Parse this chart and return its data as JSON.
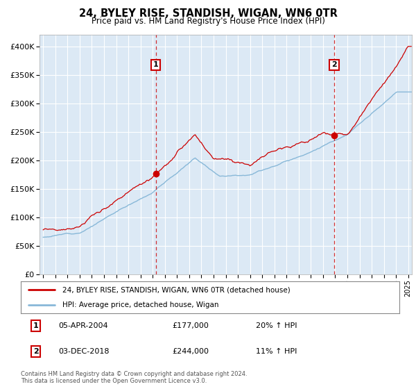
{
  "title": "24, BYLEY RISE, STANDISH, WIGAN, WN6 0TR",
  "subtitle": "Price paid vs. HM Land Registry's House Price Index (HPI)",
  "legend_line1": "24, BYLEY RISE, STANDISH, WIGAN, WN6 0TR (detached house)",
  "legend_line2": "HPI: Average price, detached house, Wigan",
  "annotation1_label": "1",
  "annotation1_date": "05-APR-2004",
  "annotation1_price": "£177,000",
  "annotation1_hpi": "20% ↑ HPI",
  "annotation2_label": "2",
  "annotation2_date": "03-DEC-2018",
  "annotation2_price": "£244,000",
  "annotation2_hpi": "11% ↑ HPI",
  "footer": "Contains HM Land Registry data © Crown copyright and database right 2024.\nThis data is licensed under the Open Government Licence v3.0.",
  "bg_color": "#dce9f5",
  "grid_color": "#c8d8e8",
  "red_line_color": "#cc0000",
  "blue_line_color": "#88b8d8",
  "vline_color": "#cc0000",
  "marker_color": "#cc0000",
  "annotation_box_color": "#cc0000",
  "ylim_min": 0,
  "ylim_max": 420000,
  "yticks": [
    0,
    50000,
    100000,
    150000,
    200000,
    250000,
    300000,
    350000,
    400000
  ],
  "ytick_labels": [
    "£0",
    "£50K",
    "£100K",
    "£150K",
    "£200K",
    "£250K",
    "£300K",
    "£350K",
    "£400K"
  ],
  "sale1_year": 2004.26,
  "sale1_value": 177000,
  "sale2_year": 2018.92,
  "sale2_value": 244000,
  "start_year": 1995,
  "end_year": 2025
}
